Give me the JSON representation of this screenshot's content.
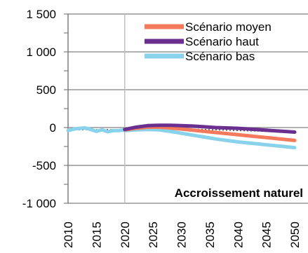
{
  "chart_data": {
    "type": "line",
    "title": "",
    "xlabel": "",
    "ylabel": "",
    "annotation": "Accroissement naturel",
    "xlim": [
      2010,
      2050
    ],
    "ylim": [
      -1000,
      1500
    ],
    "x_ticks": [
      "2010",
      "2015",
      "2020",
      "2025",
      "2030",
      "2035",
      "2040",
      "2045",
      "2050"
    ],
    "y_ticks": [
      "1 500",
      "1 000",
      "500",
      "0",
      "-500",
      "-1 000"
    ],
    "y_tick_values": [
      1500,
      1000,
      500,
      0,
      -500,
      -1000
    ],
    "grid": true,
    "legend_position": "top-right",
    "series": [
      {
        "name": "Scénario moyen",
        "color": "#F47A5B",
        "x": [
          2020,
          2022,
          2024,
          2026,
          2028,
          2030,
          2032,
          2034,
          2036,
          2038,
          2040,
          2042,
          2044,
          2046,
          2048,
          2050
        ],
        "y": [
          -30,
          -10,
          5,
          5,
          -5,
          -20,
          -35,
          -50,
          -65,
          -80,
          -95,
          -110,
          -125,
          -140,
          -155,
          -170
        ]
      },
      {
        "name": "Scénario haut",
        "color": "#6A2F8F",
        "x": [
          2020,
          2022,
          2024,
          2026,
          2028,
          2030,
          2032,
          2034,
          2036,
          2038,
          2040,
          2042,
          2044,
          2046,
          2048,
          2050
        ],
        "y": [
          -25,
          5,
          25,
          30,
          30,
          25,
          20,
          10,
          0,
          -5,
          -10,
          -20,
          -30,
          -40,
          -50,
          -60
        ]
      },
      {
        "name": "Scénario bas",
        "color": "#88D2EB",
        "x": [
          2020,
          2022,
          2024,
          2026,
          2028,
          2030,
          2032,
          2034,
          2036,
          2038,
          2040,
          2042,
          2044,
          2046,
          2048,
          2050
        ],
        "y": [
          -40,
          -30,
          -25,
          -30,
          -50,
          -75,
          -100,
          -125,
          -150,
          -170,
          -190,
          -205,
          -220,
          -235,
          -250,
          -265
        ]
      },
      {
        "name": "",
        "color": "#88D2EB",
        "x": [
          2010,
          2011,
          2012,
          2013,
          2014,
          2015,
          2016,
          2017,
          2018,
          2019,
          2020
        ],
        "y": [
          -40,
          -20,
          -10,
          -5,
          -25,
          -50,
          -30,
          -55,
          -40,
          -40,
          -30
        ]
      }
    ],
    "trend": {
      "color": "#555555",
      "x": [
        2010,
        2020,
        2030,
        2040,
        2050
      ],
      "y": [
        -30,
        -25,
        -15,
        -40,
        -60
      ]
    }
  }
}
